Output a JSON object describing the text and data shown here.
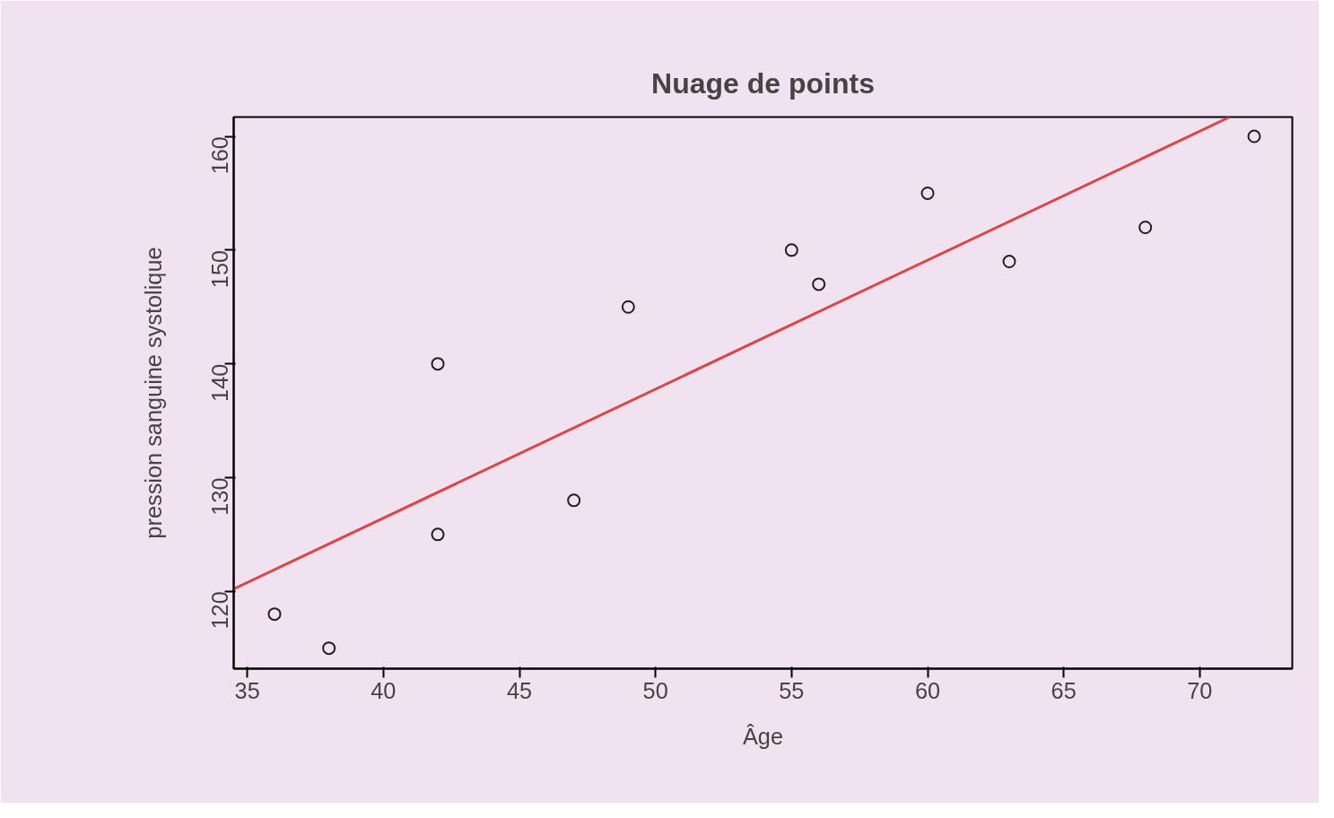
{
  "chart_data": {
    "type": "scatter",
    "title": "Nuage de points",
    "xlabel": "Âge",
    "ylabel": "pression sanguine systolique",
    "xlim": [
      34.5,
      73.4
    ],
    "ylim": [
      113.2,
      161.7
    ],
    "xticks": [
      35,
      40,
      45,
      50,
      55,
      60,
      65,
      70
    ],
    "yticks": [
      120,
      130,
      140,
      150,
      160
    ],
    "grid": false,
    "series": [
      {
        "marker": "circle",
        "color": "#222222",
        "x": [
          36,
          38,
          42,
          42,
          47,
          49,
          55,
          56,
          60,
          63,
          68,
          72
        ],
        "values": [
          118,
          115,
          140,
          125,
          128,
          145,
          150,
          147,
          155,
          149,
          152,
          160
        ]
      },
      {
        "type": "line",
        "color": "#d9474a",
        "line_style": "solid",
        "x": [
          34.5,
          71.1
        ],
        "values": [
          120.2,
          161.7
        ]
      }
    ]
  }
}
